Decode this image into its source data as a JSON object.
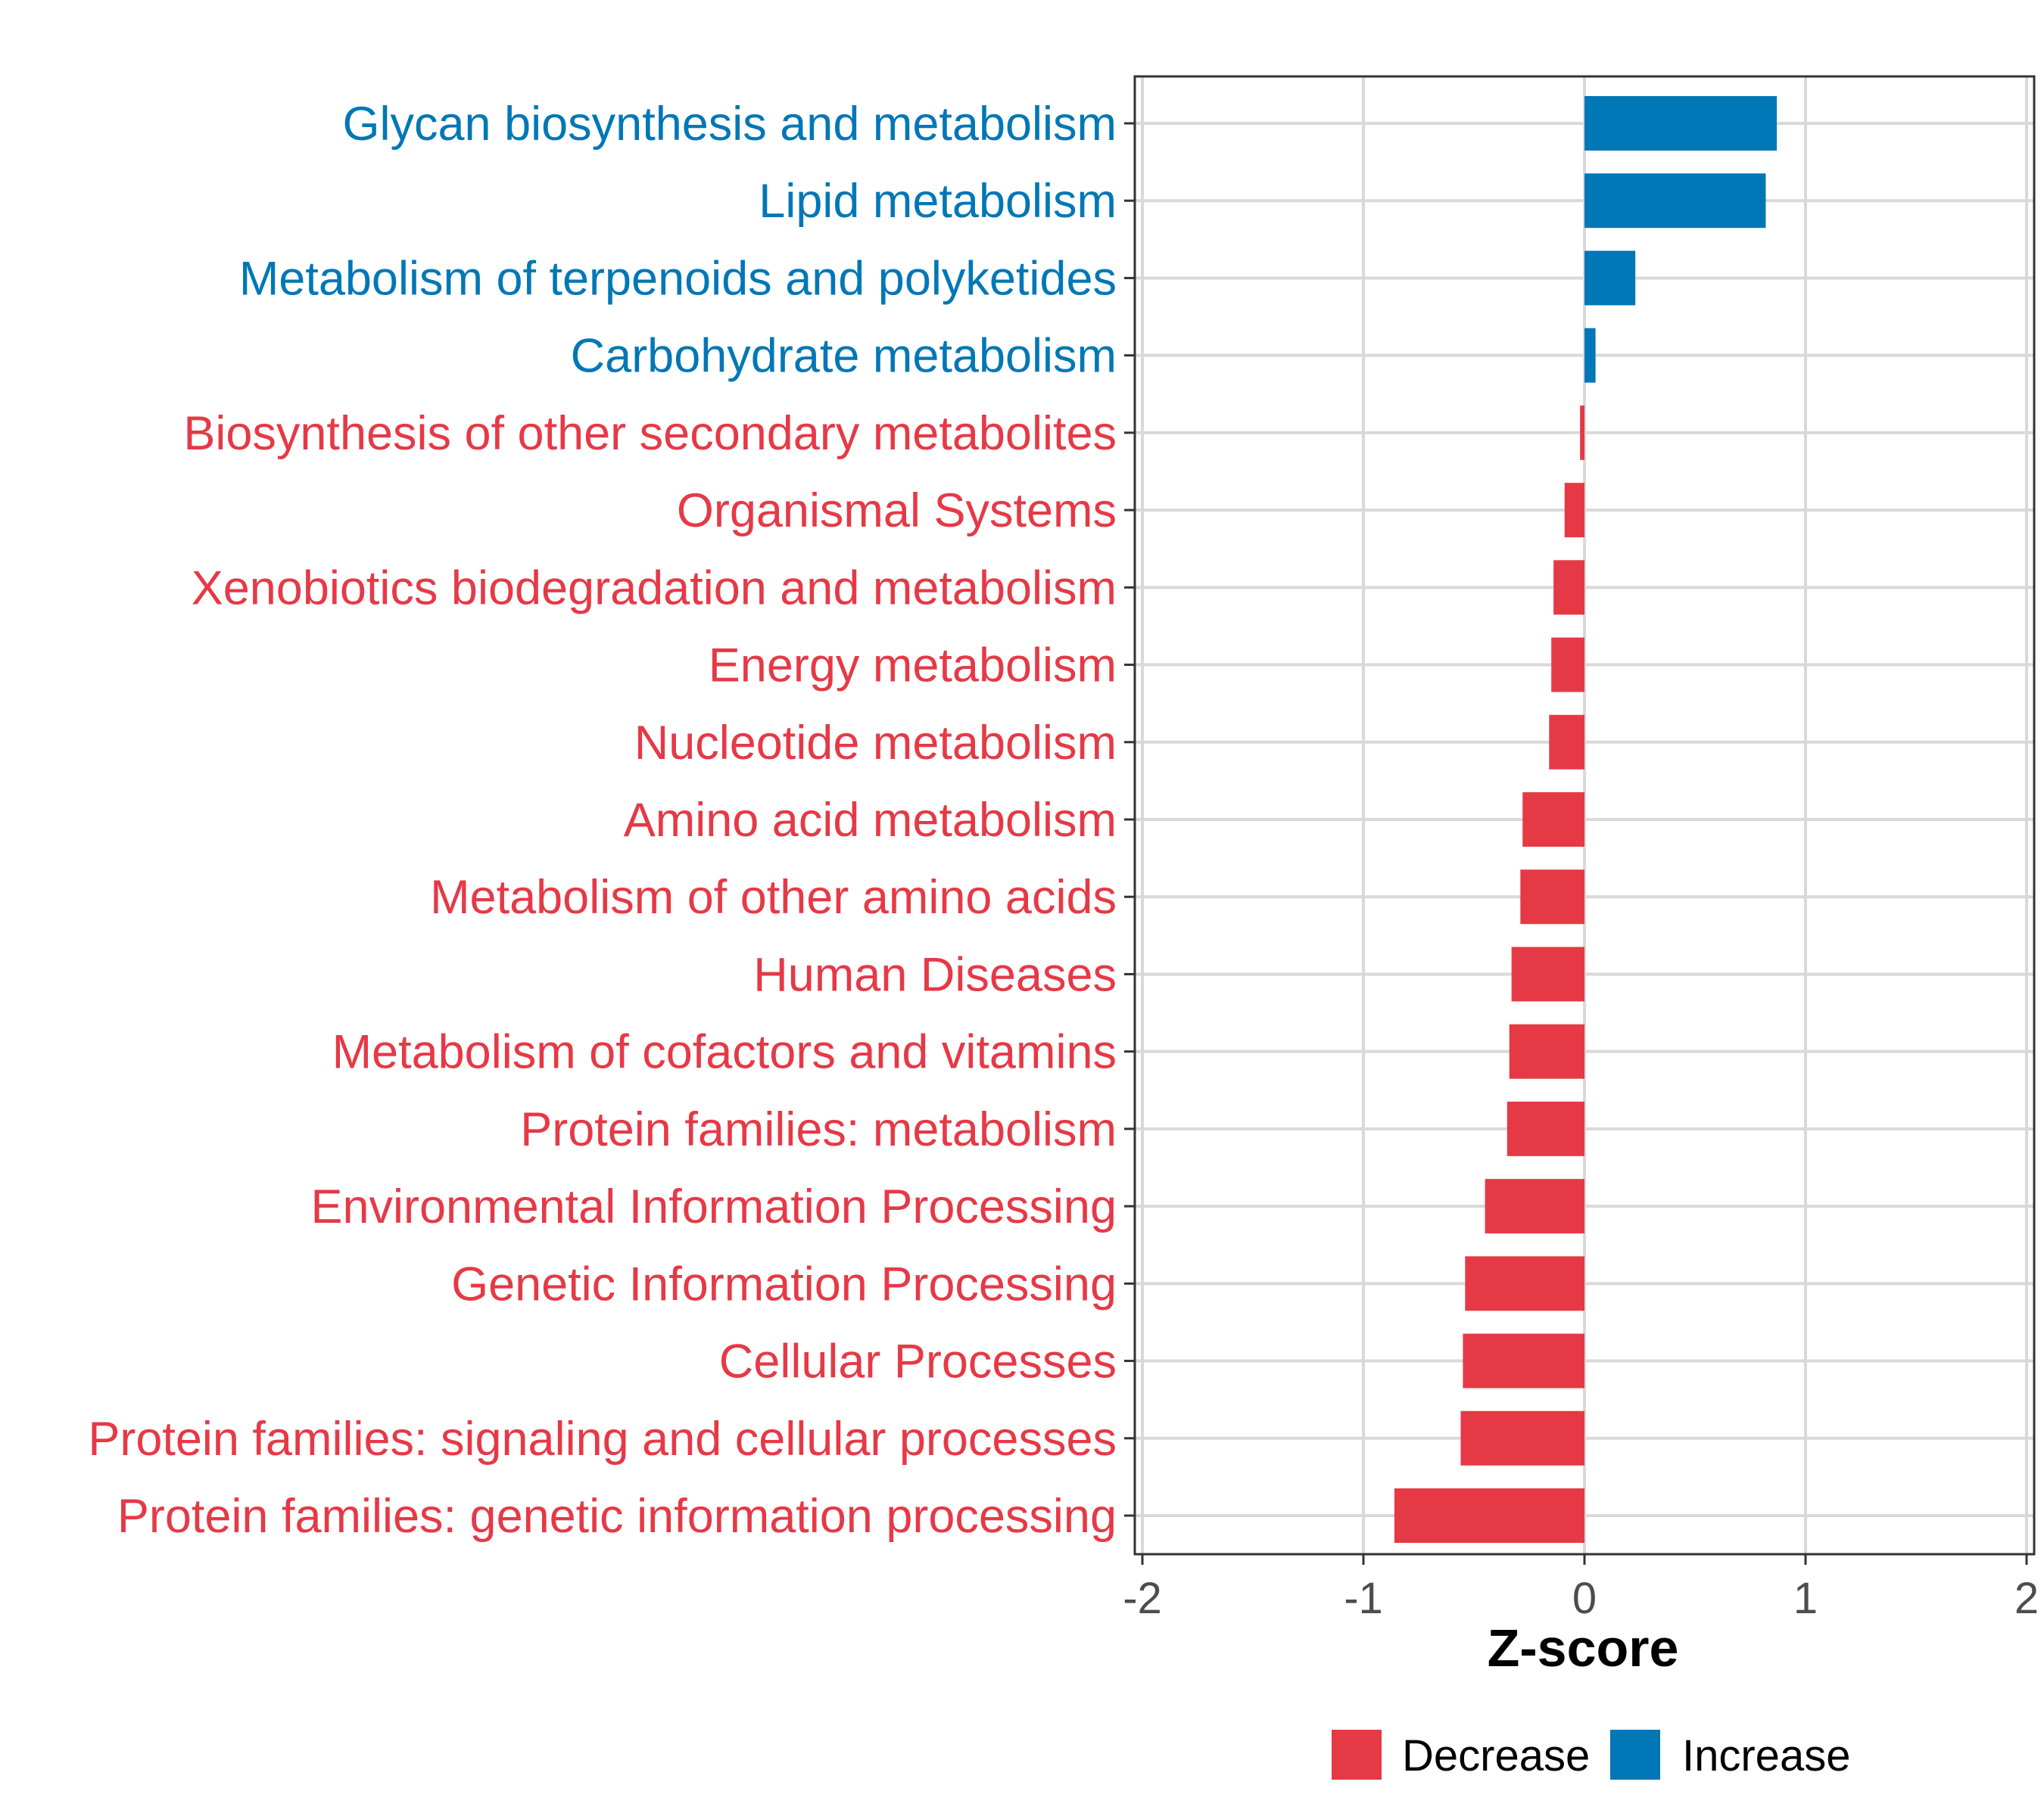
{
  "chart_data": {
    "type": "bar",
    "orientation": "horizontal",
    "title": "",
    "xlabel": "Z-score",
    "ylabel": "",
    "xlim": [
      -2,
      2
    ],
    "xticks": [
      -2,
      -1,
      0,
      1,
      2
    ],
    "xtick_labels": [
      "-2",
      "-1",
      "0",
      "1",
      "2"
    ],
    "grid": true,
    "legend_position": "bottom",
    "colors": {
      "Decrease": "#e63946",
      "Increase": "#0077b6"
    },
    "legend": [
      {
        "key": "decrease",
        "label": "Decrease"
      },
      {
        "key": "increase",
        "label": "Increase"
      }
    ],
    "categories": [
      "Glycan biosynthesis and metabolism",
      "Lipid metabolism",
      "Metabolism of terpenoids and polyketides",
      "Carbohydrate metabolism",
      "Biosynthesis of other secondary metabolites",
      "Organismal Systems",
      "Xenobiotics biodegradation and metabolism",
      "Energy metabolism",
      "Nucleotide metabolism",
      "Amino acid metabolism",
      "Metabolism of other amino acids",
      "Human Diseases",
      "Metabolism of cofactors and vitamins",
      "Protein families: metabolism",
      "Environmental Information Processing",
      "Genetic Information Processing",
      "Cellular Processes",
      "Protein families: signaling and cellular processes",
      "Protein families: genetic information processing"
    ],
    "values": [
      0.87,
      0.82,
      0.23,
      0.05,
      -0.02,
      -0.09,
      -0.14,
      -0.15,
      -0.16,
      -0.28,
      -0.29,
      -0.33,
      -0.34,
      -0.35,
      -0.45,
      -0.54,
      -0.55,
      -0.56,
      -0.86
    ],
    "groups": [
      "Increase",
      "Increase",
      "Increase",
      "Increase",
      "Decrease",
      "Decrease",
      "Decrease",
      "Decrease",
      "Decrease",
      "Decrease",
      "Decrease",
      "Decrease",
      "Decrease",
      "Decrease",
      "Decrease",
      "Decrease",
      "Decrease",
      "Decrease",
      "Decrease"
    ]
  }
}
